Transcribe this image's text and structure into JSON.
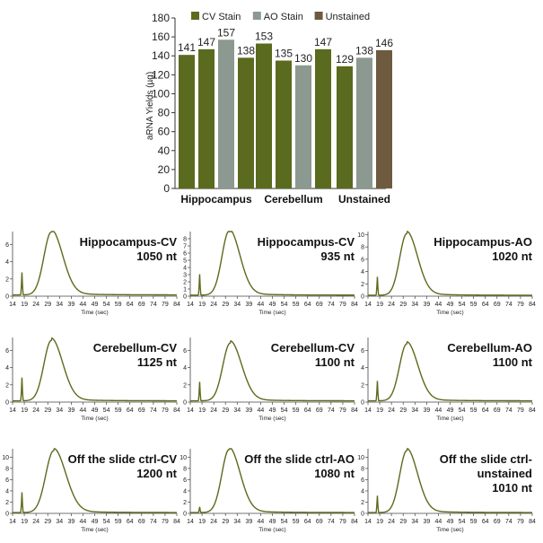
{
  "colors": {
    "cv": "#5a6a1e",
    "ao": "#8c9990",
    "unstained": "#6e5a3e",
    "trace": "#5c6a1c",
    "axis": "#333333"
  },
  "bar_chart": {
    "type": "bar",
    "ylabel": "aRNA Yields (µg)",
    "ylim": [
      0,
      180
    ],
    "yticks": [
      "0",
      "20",
      "40",
      "60",
      "80",
      "100",
      "120",
      "140",
      "160",
      "180"
    ],
    "legend": [
      {
        "label": "CV Stain",
        "color": "#5a6a1e"
      },
      {
        "label": "AO Stain",
        "color": "#8c9990"
      },
      {
        "label": "Unstained",
        "color": "#6e5a3e"
      }
    ],
    "groups": [
      {
        "label": "Hippocampus",
        "bars": [
          {
            "series": "CV Stain",
            "value": 141,
            "label": "141"
          },
          {
            "series": "CV Stain",
            "value": 147,
            "label": "147"
          },
          {
            "series": "AO Stain",
            "value": 157,
            "label": "157"
          },
          {
            "series": "CV Stain",
            "value": 138,
            "label": "138"
          }
        ]
      },
      {
        "label": "Cerebellum",
        "bars": [
          {
            "series": "CV Stain",
            "value": 153,
            "label": "153"
          },
          {
            "series": "CV Stain",
            "value": 135,
            "label": "135"
          },
          {
            "series": "AO Stain",
            "value": 130,
            "label": "130"
          },
          {
            "series": "CV Stain",
            "value": 147,
            "label": "147"
          }
        ]
      },
      {
        "label": "Unstained",
        "bars": [
          {
            "series": "CV Stain",
            "value": 129,
            "label": "129"
          },
          {
            "series": "AO Stain",
            "value": 138,
            "label": "138"
          },
          {
            "series": "Unstained",
            "value": 146,
            "label": "146"
          }
        ]
      }
    ]
  },
  "chart_data": [
    {
      "type": "line",
      "title_lines": [
        "Hippocampus-CV",
        "1050 nt"
      ],
      "xlabel": "Time (sec)",
      "xlim": [
        14,
        84
      ],
      "ylim": [
        0,
        7.5
      ],
      "yticks": [
        0,
        2,
        4,
        6
      ],
      "peak_x": 30.5,
      "peak_y": 7.3,
      "width": 4.2,
      "marker_x": 18,
      "marker_y": 2.6
    },
    {
      "type": "line",
      "title_lines": [
        "Hippocampus-CV",
        "935 nt"
      ],
      "xlabel": "Time (sec)",
      "xlim": [
        14,
        84
      ],
      "ylim": [
        0,
        9
      ],
      "yticks": [
        0,
        1,
        2,
        3,
        4,
        5,
        6,
        7,
        8
      ],
      "peak_x": 30.5,
      "peak_y": 8.9,
      "width": 4.0,
      "marker_x": 18,
      "marker_y": 2.9
    },
    {
      "type": "line",
      "title_lines": [
        "Hippocampus-AO",
        "1020 nt"
      ],
      "xlabel": "Time (sec)",
      "xlim": [
        14,
        84
      ],
      "ylim": [
        0,
        10.5
      ],
      "yticks": [
        0,
        2,
        4,
        6,
        8,
        10
      ],
      "peak_x": 30.5,
      "peak_y": 10.0,
      "width": 4.0,
      "marker_x": 18,
      "marker_y": 3.0
    },
    {
      "type": "line",
      "title_lines": [
        "Cerebellum-CV",
        "1125 nt"
      ],
      "xlabel": "Time (sec)",
      "xlim": [
        14,
        84
      ],
      "ylim": [
        0,
        7.5
      ],
      "yticks": [
        0,
        2,
        4,
        6
      ],
      "peak_x": 30.5,
      "peak_y": 7.0,
      "width": 4.2,
      "marker_x": 18,
      "marker_y": 2.7
    },
    {
      "type": "line",
      "title_lines": [
        "Cerebellum-CV",
        "1100 nt"
      ],
      "xlabel": "Time (sec)",
      "xlim": [
        14,
        84
      ],
      "ylim": [
        0,
        7.5
      ],
      "yticks": [
        0,
        2,
        4,
        6
      ],
      "peak_x": 31,
      "peak_y": 6.7,
      "width": 4.2,
      "marker_x": 18,
      "marker_y": 2.2
    },
    {
      "type": "line",
      "title_lines": [
        "Cerebellum-AO",
        "1100 nt"
      ],
      "xlabel": "Time (sec)",
      "xlim": [
        14,
        84
      ],
      "ylim": [
        0,
        7.5
      ],
      "yticks": [
        0,
        2,
        4,
        6
      ],
      "peak_x": 30.5,
      "peak_y": 6.6,
      "width": 4.1,
      "marker_x": 18,
      "marker_y": 2.3
    },
    {
      "type": "line",
      "title_lines": [
        "Off the slide ctrl-CV",
        "1200 nt"
      ],
      "xlabel": "Time (sec)",
      "xlim": [
        14,
        84
      ],
      "ylim": [
        0,
        11.5
      ],
      "yticks": [
        0,
        2,
        4,
        6,
        8,
        10
      ],
      "peak_x": 31.5,
      "peak_y": 11.0,
      "width": 4.5,
      "marker_x": 18,
      "marker_y": 3.6
    },
    {
      "type": "line",
      "title_lines": [
        "Off the slide ctrl-AO",
        "1080 nt"
      ],
      "xlabel": "Time (sec)",
      "xlim": [
        14,
        84
      ],
      "ylim": [
        0,
        11.5
      ],
      "yticks": [
        0,
        2,
        4,
        6,
        8,
        10
      ],
      "peak_x": 30.5,
      "peak_y": 11.2,
      "width": 4.1,
      "marker_x": 18,
      "marker_y": 1.0
    },
    {
      "type": "line",
      "title_lines": [
        "Off the slide ctrl-",
        "unstained",
        "1010 nt"
      ],
      "xlabel": "Time (sec)",
      "xlim": [
        14,
        84
      ],
      "ylim": [
        0,
        11.5
      ],
      "yticks": [
        0,
        2,
        4,
        6,
        8,
        10
      ],
      "peak_x": 30.5,
      "peak_y": 11.0,
      "width": 4.0,
      "marker_x": 18,
      "marker_y": 3.0
    }
  ],
  "x_tick_labels": [
    "14",
    "19",
    "24",
    "29",
    "34",
    "39",
    "44",
    "49",
    "54",
    "59",
    "64",
    "69",
    "74",
    "79",
    "84"
  ]
}
